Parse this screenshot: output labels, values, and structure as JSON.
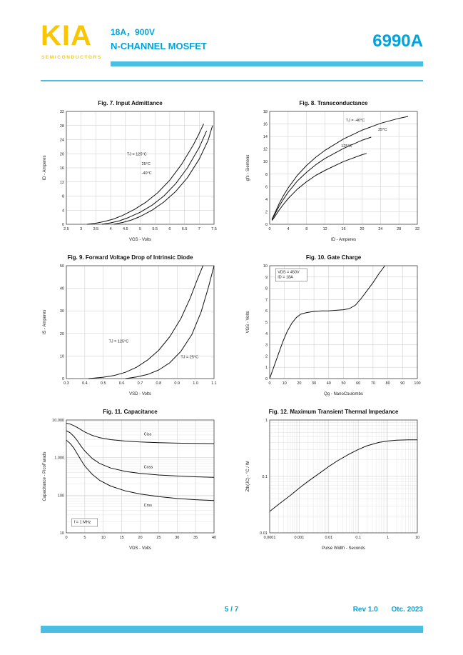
{
  "header": {
    "logo": "KIA",
    "logo_sub": "SEMICONDUCTORS",
    "rating": "18A，900V",
    "device_type": "N-CHANNEL MOSFET",
    "part_number": "6990A"
  },
  "footer": {
    "page": "5 / 7",
    "revision": "Rev 1.0",
    "date": "Otc. 2023"
  },
  "colors": {
    "brand_yellow": "#F9C606",
    "accent_cyan": "#00A3DC",
    "bar_cyan": "#4BBEE3"
  },
  "chart_data": [
    {
      "id": "fig7",
      "type": "line",
      "title": "Fig. 7. Input Admittance",
      "xlabel": "VGS - Volts",
      "ylabel": "ID - Amperes",
      "xscale": "linear",
      "yscale": "linear",
      "xlim": [
        2.5,
        7.5
      ],
      "xticks": [
        2.5,
        3,
        3.5,
        4,
        4.5,
        5,
        5.5,
        6,
        6.5,
        7,
        7.5
      ],
      "xticklabels": [
        "2.5",
        "3",
        "3.5",
        "4",
        "4.5",
        "5",
        "5.5",
        "6",
        "6.5",
        "7",
        "7.5"
      ],
      "ylim": [
        0,
        32
      ],
      "yticks": [
        0,
        4,
        8,
        12,
        16,
        20,
        24,
        28,
        32
      ],
      "yticklabels": [
        "0",
        "4",
        "8",
        "12",
        "16",
        "20",
        "24",
        "28",
        "32"
      ],
      "legend_position": "inline",
      "grid": true,
      "series": [
        {
          "name": "TJ = 125°C",
          "x": [
            3.2,
            3.5,
            3.8,
            4.1,
            4.4,
            4.8,
            5.2,
            5.6,
            6.0,
            6.4,
            6.8,
            7.0,
            7.15
          ],
          "y": [
            0,
            0.3,
            0.8,
            1.5,
            2.5,
            4.2,
            6.3,
            9.0,
            12.5,
            17.0,
            22.5,
            25.8,
            28.5
          ]
        },
        {
          "name": "25°C",
          "x": [
            3.7,
            4.0,
            4.3,
            4.6,
            5.0,
            5.4,
            5.8,
            6.2,
            6.6,
            7.0,
            7.25
          ],
          "y": [
            0,
            0.4,
            1.0,
            1.9,
            3.4,
            5.4,
            8.0,
            11.5,
            16.0,
            21.8,
            26.5
          ]
        },
        {
          "name": "-40°C",
          "x": [
            4.1,
            4.4,
            4.7,
            5.0,
            5.4,
            5.8,
            6.2,
            6.6,
            7.0,
            7.3,
            7.45
          ],
          "y": [
            0,
            0.5,
            1.2,
            2.2,
            4.0,
            6.3,
            9.3,
            13.2,
            18.5,
            23.8,
            28.0
          ]
        }
      ],
      "annotations": [
        {
          "text": "TJ = 125°C",
          "x": 4.55,
          "y": 19.5
        },
        {
          "text": "25°C",
          "x": 5.05,
          "y": 16.8
        },
        {
          "text": "-40°C",
          "x": 5.05,
          "y": 14.2
        }
      ]
    },
    {
      "id": "fig8",
      "type": "line",
      "title": "Fig. 8. Transconductance",
      "xlabel": "ID - Amperes",
      "ylabel": "gfs - Siemens",
      "xscale": "linear",
      "yscale": "linear",
      "xlim": [
        0,
        32
      ],
      "xticks": [
        0,
        4,
        8,
        12,
        16,
        20,
        24,
        28,
        32
      ],
      "xticklabels": [
        "0",
        "4",
        "8",
        "12",
        "16",
        "20",
        "24",
        "28",
        "32"
      ],
      "ylim": [
        0,
        18
      ],
      "yticks": [
        0,
        2,
        4,
        6,
        8,
        10,
        12,
        14,
        16,
        18
      ],
      "yticklabels": [
        "0",
        "2",
        "4",
        "6",
        "8",
        "10",
        "12",
        "14",
        "16",
        "18"
      ],
      "grid": true,
      "series": [
        {
          "name": "TJ = -40°C",
          "x": [
            0.5,
            1,
            2,
            3,
            4,
            6,
            8,
            10,
            12,
            16,
            20,
            24,
            28,
            30
          ],
          "y": [
            0.8,
            1.6,
            3.2,
            4.6,
            5.8,
            7.8,
            9.4,
            10.7,
            11.8,
            13.6,
            15.0,
            16.1,
            16.9,
            17.2
          ]
        },
        {
          "name": "25°C",
          "x": [
            0.5,
            1,
            2,
            3,
            4,
            6,
            8,
            10,
            12,
            16,
            20,
            22
          ],
          "y": [
            0.7,
            1.4,
            2.8,
            4.0,
            5.1,
            6.9,
            8.3,
            9.5,
            10.5,
            12.1,
            13.4,
            13.9
          ]
        },
        {
          "name": "125°C",
          "x": [
            0.5,
            1,
            2,
            3,
            4,
            6,
            8,
            10,
            12,
            16,
            20,
            21
          ],
          "y": [
            0.6,
            1.1,
            2.2,
            3.2,
            4.1,
            5.6,
            6.8,
            7.8,
            8.6,
            10.0,
            11.1,
            11.3
          ]
        }
      ],
      "annotations": [
        {
          "text": "TJ = -40°C",
          "x": 16.5,
          "y": 16.4
        },
        {
          "text": "25°C",
          "x": 23.5,
          "y": 14.9
        },
        {
          "text": "125°C",
          "x": 15.5,
          "y": 12.3
        }
      ]
    },
    {
      "id": "fig9",
      "type": "line",
      "title": "Fig. 9. Forward Voltage Drop of Intrinsic Diode",
      "xlabel": "VSD - Volts",
      "ylabel": "IS - Amperes",
      "xscale": "linear",
      "yscale": "linear",
      "xlim": [
        0.3,
        1.1
      ],
      "xticks": [
        0.3,
        0.4,
        0.5,
        0.6,
        0.7,
        0.8,
        0.9,
        1.0,
        1.1
      ],
      "xticklabels": [
        "0.3",
        "0.4",
        "0.5",
        "0.6",
        "0.7",
        "0.8",
        "0.9",
        "1.0",
        "1.1"
      ],
      "ylim": [
        0,
        50
      ],
      "yticks": [
        0,
        10,
        20,
        30,
        40,
        50
      ],
      "yticklabels": [
        "0",
        "10",
        "20",
        "30",
        "40",
        "50"
      ],
      "grid": true,
      "series": [
        {
          "name": "TJ = 125°C",
          "x": [
            0.42,
            0.5,
            0.56,
            0.62,
            0.68,
            0.74,
            0.8,
            0.86,
            0.92,
            0.97,
            1.01,
            1.04
          ],
          "y": [
            0,
            0.6,
            1.4,
            2.8,
            5.0,
            8.2,
            12.5,
            18.5,
            26.5,
            35.5,
            44.0,
            50.0
          ]
        },
        {
          "name": "TJ = 25°C",
          "x": [
            0.62,
            0.68,
            0.74,
            0.8,
            0.86,
            0.92,
            0.98,
            1.03,
            1.07,
            1.1
          ],
          "y": [
            0,
            0.7,
            1.8,
            3.8,
            7.0,
            12.0,
            19.5,
            29.5,
            40.5,
            50.0
          ]
        }
      ],
      "annotations": [
        {
          "text": "TJ = 125°C",
          "x": 0.53,
          "y": 16
        },
        {
          "text": "TJ = 25°C",
          "x": 0.92,
          "y": 9
        }
      ]
    },
    {
      "id": "fig10",
      "type": "line",
      "title": "Fig. 10. Gate Charge",
      "xlabel": "Qg - NanoCoulombs",
      "ylabel": "VGS - Volts",
      "xscale": "linear",
      "yscale": "linear",
      "xlim": [
        0,
        100
      ],
      "xticks": [
        0,
        10,
        20,
        30,
        40,
        50,
        60,
        70,
        80,
        90,
        100
      ],
      "xticklabels": [
        "0",
        "10",
        "20",
        "30",
        "40",
        "50",
        "60",
        "70",
        "80",
        "90",
        "100"
      ],
      "ylim": [
        0,
        10
      ],
      "yticks": [
        0,
        1,
        2,
        3,
        4,
        5,
        6,
        7,
        8,
        9,
        10
      ],
      "yticklabels": [
        "0",
        "1",
        "2",
        "3",
        "4",
        "5",
        "6",
        "7",
        "8",
        "9",
        "10"
      ],
      "grid": true,
      "conditions": [
        "VDS = 450V",
        "ID = 18A"
      ],
      "series": [
        {
          "name": "gate-charge",
          "x": [
            0,
            3,
            6,
            9,
            12,
            15,
            18,
            21,
            25,
            30,
            35,
            40,
            45,
            50,
            54,
            58,
            62,
            66,
            70,
            74,
            78
          ],
          "y": [
            0,
            1.1,
            2.2,
            3.3,
            4.2,
            4.9,
            5.4,
            5.7,
            5.85,
            5.95,
            6.0,
            6.0,
            6.05,
            6.1,
            6.2,
            6.5,
            7.1,
            7.8,
            8.5,
            9.3,
            10.0
          ]
        }
      ],
      "annotations": [
        {
          "box": true,
          "x": 4,
          "y": 9.75,
          "w": 44,
          "lines": [
            "VDS = 450V",
            "ID = 18A"
          ]
        }
      ]
    },
    {
      "id": "fig11",
      "type": "line",
      "title": "Fig. 11. Capacitance",
      "xlabel": "VDS - Volts",
      "ylabel": "Capacitance - PicoFarads",
      "xscale": "linear",
      "yscale": "log",
      "xlim": [
        0,
        40
      ],
      "xticks": [
        0,
        5,
        10,
        15,
        20,
        25,
        30,
        35,
        40
      ],
      "xticklabels": [
        "0",
        "5",
        "10",
        "15",
        "20",
        "25",
        "30",
        "35",
        "40"
      ],
      "ylim": [
        10,
        10000
      ],
      "yticks": [
        10,
        100,
        1000,
        10000
      ],
      "yticklabels": [
        "10",
        "100",
        "1,000",
        "10,000"
      ],
      "grid": true,
      "conditions": [
        "f = 1 MHz"
      ],
      "series": [
        {
          "name": "Ciss",
          "x": [
            0,
            1,
            2,
            3,
            4,
            5,
            7,
            9,
            12,
            16,
            20,
            25,
            30,
            35,
            40
          ],
          "y": [
            8200,
            7800,
            7100,
            6300,
            5500,
            4800,
            3900,
            3400,
            3000,
            2750,
            2600,
            2500,
            2430,
            2380,
            2350
          ]
        },
        {
          "name": "Coss",
          "x": [
            0,
            1,
            2,
            3,
            4,
            5,
            7,
            9,
            12,
            16,
            20,
            25,
            30,
            35,
            40
          ],
          "y": [
            5200,
            4600,
            3700,
            2800,
            2000,
            1500,
            950,
            700,
            530,
            430,
            380,
            345,
            325,
            310,
            300
          ]
        },
        {
          "name": "Crss",
          "x": [
            0,
            1,
            2,
            3,
            4,
            5,
            7,
            9,
            12,
            16,
            20,
            25,
            30,
            35,
            40
          ],
          "y": [
            2900,
            2400,
            1800,
            1250,
            850,
            600,
            360,
            250,
            175,
            130,
            108,
            92,
            82,
            76,
            72
          ]
        }
      ],
      "annotations": [
        {
          "text": "Ciss",
          "x": 21,
          "y": 3900
        },
        {
          "text": "Coss",
          "x": 21,
          "y": 520
        },
        {
          "text": "Crss",
          "x": 21,
          "y": 50
        },
        {
          "box": true,
          "x": 1.5,
          "y": 24,
          "w": 36,
          "lines": [
            "f = 1 MHz"
          ]
        }
      ]
    },
    {
      "id": "fig12",
      "type": "line",
      "title": "Fig. 12. Maximum Transient Thermal Impedance",
      "xlabel": "Pulse Width - Seconds",
      "ylabel": "Zth(JC) - °C / W",
      "xscale": "log",
      "yscale": "log",
      "xlim": [
        0.0001,
        10
      ],
      "xticks": [
        0.0001,
        0.001,
        0.01,
        0.1,
        1,
        10
      ],
      "xticklabels": [
        "0.0001",
        "0.001",
        "0.01",
        "0.1",
        "1",
        "10"
      ],
      "ylim": [
        0.01,
        1
      ],
      "yticks": [
        0.01,
        0.1,
        1
      ],
      "yticklabels": [
        "0.01",
        "0.1",
        "1"
      ],
      "grid": true,
      "series": [
        {
          "name": "Zth(JC)",
          "x": [
            0.0001,
            0.0002,
            0.0005,
            0.001,
            0.002,
            0.005,
            0.01,
            0.02,
            0.05,
            0.1,
            0.2,
            0.5,
            1,
            2,
            5,
            10
          ],
          "y": [
            0.024,
            0.032,
            0.046,
            0.062,
            0.082,
            0.115,
            0.15,
            0.19,
            0.25,
            0.3,
            0.35,
            0.4,
            0.425,
            0.44,
            0.445,
            0.445
          ]
        }
      ],
      "annotations": []
    }
  ]
}
